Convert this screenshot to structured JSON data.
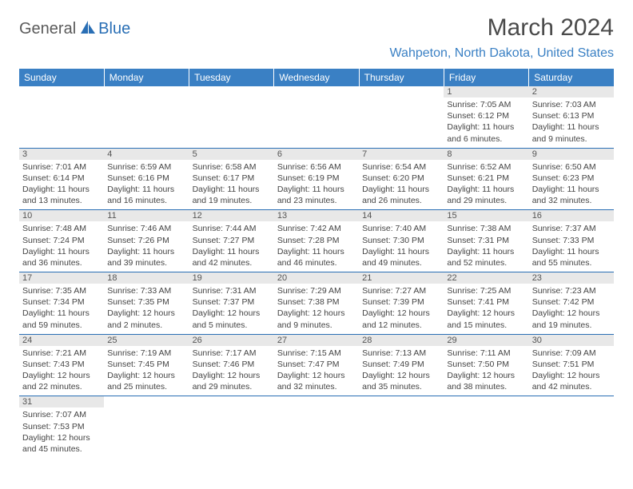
{
  "logo": {
    "general": "General",
    "blue": "Blue"
  },
  "title": "March 2024",
  "location": "Wahpeton, North Dakota, United States",
  "colors": {
    "header_bg": "#3a80c4",
    "header_text": "#ffffff",
    "accent": "#2a6fb5",
    "daynum_bg": "#e8e8e8",
    "body_text": "#444444"
  },
  "weekdays": [
    "Sunday",
    "Monday",
    "Tuesday",
    "Wednesday",
    "Thursday",
    "Friday",
    "Saturday"
  ],
  "weeks": [
    [
      null,
      null,
      null,
      null,
      null,
      {
        "n": "1",
        "sr": "Sunrise: 7:05 AM",
        "ss": "Sunset: 6:12 PM",
        "dl": "Daylight: 11 hours and 6 minutes."
      },
      {
        "n": "2",
        "sr": "Sunrise: 7:03 AM",
        "ss": "Sunset: 6:13 PM",
        "dl": "Daylight: 11 hours and 9 minutes."
      }
    ],
    [
      {
        "n": "3",
        "sr": "Sunrise: 7:01 AM",
        "ss": "Sunset: 6:14 PM",
        "dl": "Daylight: 11 hours and 13 minutes."
      },
      {
        "n": "4",
        "sr": "Sunrise: 6:59 AM",
        "ss": "Sunset: 6:16 PM",
        "dl": "Daylight: 11 hours and 16 minutes."
      },
      {
        "n": "5",
        "sr": "Sunrise: 6:58 AM",
        "ss": "Sunset: 6:17 PM",
        "dl": "Daylight: 11 hours and 19 minutes."
      },
      {
        "n": "6",
        "sr": "Sunrise: 6:56 AM",
        "ss": "Sunset: 6:19 PM",
        "dl": "Daylight: 11 hours and 23 minutes."
      },
      {
        "n": "7",
        "sr": "Sunrise: 6:54 AM",
        "ss": "Sunset: 6:20 PM",
        "dl": "Daylight: 11 hours and 26 minutes."
      },
      {
        "n": "8",
        "sr": "Sunrise: 6:52 AM",
        "ss": "Sunset: 6:21 PM",
        "dl": "Daylight: 11 hours and 29 minutes."
      },
      {
        "n": "9",
        "sr": "Sunrise: 6:50 AM",
        "ss": "Sunset: 6:23 PM",
        "dl": "Daylight: 11 hours and 32 minutes."
      }
    ],
    [
      {
        "n": "10",
        "sr": "Sunrise: 7:48 AM",
        "ss": "Sunset: 7:24 PM",
        "dl": "Daylight: 11 hours and 36 minutes."
      },
      {
        "n": "11",
        "sr": "Sunrise: 7:46 AM",
        "ss": "Sunset: 7:26 PM",
        "dl": "Daylight: 11 hours and 39 minutes."
      },
      {
        "n": "12",
        "sr": "Sunrise: 7:44 AM",
        "ss": "Sunset: 7:27 PM",
        "dl": "Daylight: 11 hours and 42 minutes."
      },
      {
        "n": "13",
        "sr": "Sunrise: 7:42 AM",
        "ss": "Sunset: 7:28 PM",
        "dl": "Daylight: 11 hours and 46 minutes."
      },
      {
        "n": "14",
        "sr": "Sunrise: 7:40 AM",
        "ss": "Sunset: 7:30 PM",
        "dl": "Daylight: 11 hours and 49 minutes."
      },
      {
        "n": "15",
        "sr": "Sunrise: 7:38 AM",
        "ss": "Sunset: 7:31 PM",
        "dl": "Daylight: 11 hours and 52 minutes."
      },
      {
        "n": "16",
        "sr": "Sunrise: 7:37 AM",
        "ss": "Sunset: 7:33 PM",
        "dl": "Daylight: 11 hours and 55 minutes."
      }
    ],
    [
      {
        "n": "17",
        "sr": "Sunrise: 7:35 AM",
        "ss": "Sunset: 7:34 PM",
        "dl": "Daylight: 11 hours and 59 minutes."
      },
      {
        "n": "18",
        "sr": "Sunrise: 7:33 AM",
        "ss": "Sunset: 7:35 PM",
        "dl": "Daylight: 12 hours and 2 minutes."
      },
      {
        "n": "19",
        "sr": "Sunrise: 7:31 AM",
        "ss": "Sunset: 7:37 PM",
        "dl": "Daylight: 12 hours and 5 minutes."
      },
      {
        "n": "20",
        "sr": "Sunrise: 7:29 AM",
        "ss": "Sunset: 7:38 PM",
        "dl": "Daylight: 12 hours and 9 minutes."
      },
      {
        "n": "21",
        "sr": "Sunrise: 7:27 AM",
        "ss": "Sunset: 7:39 PM",
        "dl": "Daylight: 12 hours and 12 minutes."
      },
      {
        "n": "22",
        "sr": "Sunrise: 7:25 AM",
        "ss": "Sunset: 7:41 PM",
        "dl": "Daylight: 12 hours and 15 minutes."
      },
      {
        "n": "23",
        "sr": "Sunrise: 7:23 AM",
        "ss": "Sunset: 7:42 PM",
        "dl": "Daylight: 12 hours and 19 minutes."
      }
    ],
    [
      {
        "n": "24",
        "sr": "Sunrise: 7:21 AM",
        "ss": "Sunset: 7:43 PM",
        "dl": "Daylight: 12 hours and 22 minutes."
      },
      {
        "n": "25",
        "sr": "Sunrise: 7:19 AM",
        "ss": "Sunset: 7:45 PM",
        "dl": "Daylight: 12 hours and 25 minutes."
      },
      {
        "n": "26",
        "sr": "Sunrise: 7:17 AM",
        "ss": "Sunset: 7:46 PM",
        "dl": "Daylight: 12 hours and 29 minutes."
      },
      {
        "n": "27",
        "sr": "Sunrise: 7:15 AM",
        "ss": "Sunset: 7:47 PM",
        "dl": "Daylight: 12 hours and 32 minutes."
      },
      {
        "n": "28",
        "sr": "Sunrise: 7:13 AM",
        "ss": "Sunset: 7:49 PM",
        "dl": "Daylight: 12 hours and 35 minutes."
      },
      {
        "n": "29",
        "sr": "Sunrise: 7:11 AM",
        "ss": "Sunset: 7:50 PM",
        "dl": "Daylight: 12 hours and 38 minutes."
      },
      {
        "n": "30",
        "sr": "Sunrise: 7:09 AM",
        "ss": "Sunset: 7:51 PM",
        "dl": "Daylight: 12 hours and 42 minutes."
      }
    ],
    [
      {
        "n": "31",
        "sr": "Sunrise: 7:07 AM",
        "ss": "Sunset: 7:53 PM",
        "dl": "Daylight: 12 hours and 45 minutes."
      },
      null,
      null,
      null,
      null,
      null,
      null
    ]
  ]
}
